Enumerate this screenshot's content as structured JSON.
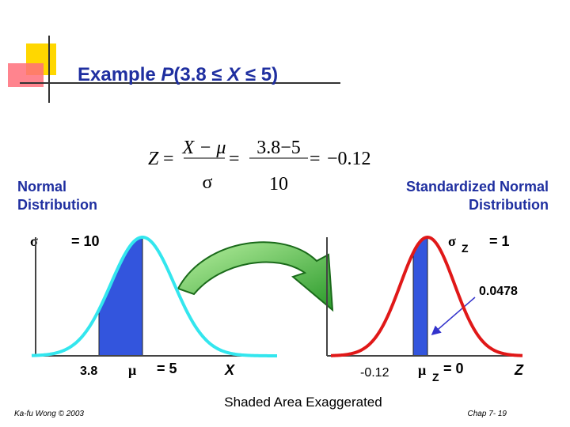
{
  "title": [
    "Example ",
    "P",
    "(3.8 ≤ ",
    "X",
    " ≤ 5)"
  ],
  "formula": {
    "lhs": "Z",
    "eq": "=",
    "frac1": {
      "num": "X − μ",
      "den": "σ"
    },
    "frac2": {
      "num": "3.8−5",
      "den": "10"
    },
    "result": "−0.12"
  },
  "left": {
    "heading": [
      "Normal",
      "Distribution"
    ],
    "sigma": "σ",
    "sigma_value": "= 10",
    "x_label": "3.8",
    "mu": "μ",
    "mu_value": "= 5",
    "axis": "X"
  },
  "right": {
    "heading": [
      "Standardized Normal",
      "Distribution"
    ],
    "sigma": "σ",
    "sigma_sub": "Z",
    "sigma_value": "= 1",
    "area": "0.0478",
    "x_label": "-0.12",
    "mu": "μ",
    "mu_sub": "Z",
    "mu_value": "= 0",
    "axis": "Z"
  },
  "caption": "Shaded Area Exaggerated",
  "footer": {
    "author": "Ka-fu Wong © 2003",
    "page": "Chap 7- 19"
  }
}
